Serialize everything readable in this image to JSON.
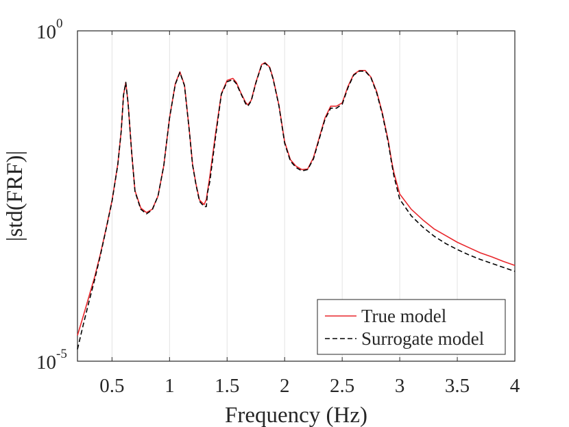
{
  "chart_data": {
    "type": "line",
    "title": "",
    "xlabel": "Frequency (Hz)",
    "ylabel": "|std(FRF)|",
    "xlim": [
      0.2,
      4
    ],
    "ylim_log10": [
      -5,
      0
    ],
    "yscale": "log",
    "x_ticks": [
      0.5,
      1,
      1.5,
      2,
      2.5,
      3,
      3.5,
      4
    ],
    "x_tick_labels": [
      "0.5",
      "1",
      "1.5",
      "2",
      "2.5",
      "3",
      "3.5",
      "4"
    ],
    "y_ticks": [
      {
        "base": "10",
        "exponent": "-5",
        "log10": -5
      },
      {
        "base": "10",
        "exponent": "0",
        "log10": 0
      }
    ],
    "grid": "vertical",
    "legend_position": "bottom-right",
    "series": [
      {
        "name": "True model",
        "color": "#e8262b",
        "dash": "solid",
        "x": [
          0.2,
          0.25,
          0.3,
          0.35,
          0.4,
          0.45,
          0.5,
          0.55,
          0.58,
          0.6,
          0.62,
          0.64,
          0.67,
          0.7,
          0.75,
          0.8,
          0.85,
          0.9,
          0.95,
          1.0,
          1.05,
          1.09,
          1.13,
          1.17,
          1.2,
          1.23,
          1.26,
          1.3,
          1.32,
          1.35,
          1.4,
          1.45,
          1.5,
          1.55,
          1.58,
          1.62,
          1.66,
          1.68,
          1.71,
          1.75,
          1.8,
          1.83,
          1.87,
          1.9,
          1.95,
          2.0,
          2.05,
          2.1,
          2.15,
          2.2,
          2.25,
          2.3,
          2.35,
          2.4,
          2.45,
          2.5,
          2.55,
          2.6,
          2.65,
          2.7,
          2.75,
          2.8,
          2.85,
          2.9,
          2.93,
          2.95,
          3.0,
          3.1,
          3.2,
          3.3,
          3.4,
          3.5,
          3.6,
          3.7,
          3.8,
          3.9,
          4.0
        ],
        "y": [
          -4.61,
          -4.32,
          -4.02,
          -3.72,
          -3.37,
          -2.98,
          -2.57,
          -2.02,
          -1.52,
          -0.97,
          -0.78,
          -1.1,
          -1.82,
          -2.42,
          -2.68,
          -2.75,
          -2.7,
          -2.5,
          -2.04,
          -1.32,
          -0.8,
          -0.62,
          -0.82,
          -1.48,
          -2.02,
          -2.32,
          -2.56,
          -2.63,
          -2.55,
          -2.2,
          -1.55,
          -0.95,
          -0.75,
          -0.72,
          -0.78,
          -0.94,
          -1.08,
          -1.12,
          -1.05,
          -0.78,
          -0.51,
          -0.48,
          -0.55,
          -0.72,
          -1.12,
          -1.68,
          -1.95,
          -2.05,
          -2.1,
          -2.09,
          -1.92,
          -1.62,
          -1.32,
          -1.14,
          -1.14,
          -1.09,
          -0.84,
          -0.66,
          -0.6,
          -0.6,
          -0.7,
          -0.92,
          -1.25,
          -1.66,
          -1.98,
          -2.15,
          -2.47,
          -2.7,
          -2.86,
          -3.0,
          -3.1,
          -3.2,
          -3.28,
          -3.36,
          -3.42,
          -3.49,
          -3.55
        ]
      },
      {
        "name": "Surrogate model",
        "color": "#000000",
        "dash": "dashed",
        "x": [
          0.2,
          0.25,
          0.3,
          0.35,
          0.4,
          0.45,
          0.5,
          0.55,
          0.58,
          0.6,
          0.62,
          0.64,
          0.67,
          0.7,
          0.75,
          0.8,
          0.85,
          0.9,
          0.95,
          1.0,
          1.05,
          1.09,
          1.13,
          1.17,
          1.2,
          1.23,
          1.26,
          1.3,
          1.32,
          1.33,
          1.35,
          1.4,
          1.45,
          1.5,
          1.55,
          1.58,
          1.62,
          1.66,
          1.68,
          1.71,
          1.75,
          1.8,
          1.83,
          1.87,
          1.9,
          1.95,
          2.0,
          2.05,
          2.1,
          2.15,
          2.2,
          2.25,
          2.3,
          2.35,
          2.4,
          2.45,
          2.5,
          2.55,
          2.6,
          2.65,
          2.7,
          2.75,
          2.8,
          2.85,
          2.9,
          2.93,
          2.95,
          3.0,
          3.1,
          3.2,
          3.3,
          3.4,
          3.5,
          3.6,
          3.7,
          3.8,
          3.9,
          4.0
        ],
        "y": [
          -4.82,
          -4.45,
          -4.1,
          -3.76,
          -3.39,
          -2.99,
          -2.58,
          -2.03,
          -1.52,
          -0.97,
          -0.78,
          -1.1,
          -1.82,
          -2.43,
          -2.7,
          -2.77,
          -2.71,
          -2.5,
          -2.04,
          -1.32,
          -0.81,
          -0.63,
          -0.83,
          -1.49,
          -2.03,
          -2.33,
          -2.58,
          -2.66,
          -2.66,
          -2.45,
          -2.28,
          -1.6,
          -0.96,
          -0.77,
          -0.74,
          -0.8,
          -0.95,
          -1.1,
          -1.14,
          -1.06,
          -0.79,
          -0.52,
          -0.49,
          -0.56,
          -0.73,
          -1.13,
          -1.7,
          -1.97,
          -2.07,
          -2.12,
          -2.1,
          -1.94,
          -1.64,
          -1.34,
          -1.17,
          -1.17,
          -1.11,
          -0.86,
          -0.67,
          -0.61,
          -0.61,
          -0.71,
          -0.94,
          -1.27,
          -1.69,
          -2.01,
          -2.2,
          -2.55,
          -2.8,
          -2.97,
          -3.11,
          -3.22,
          -3.31,
          -3.39,
          -3.46,
          -3.52,
          -3.58,
          -3.64
        ]
      }
    ]
  }
}
